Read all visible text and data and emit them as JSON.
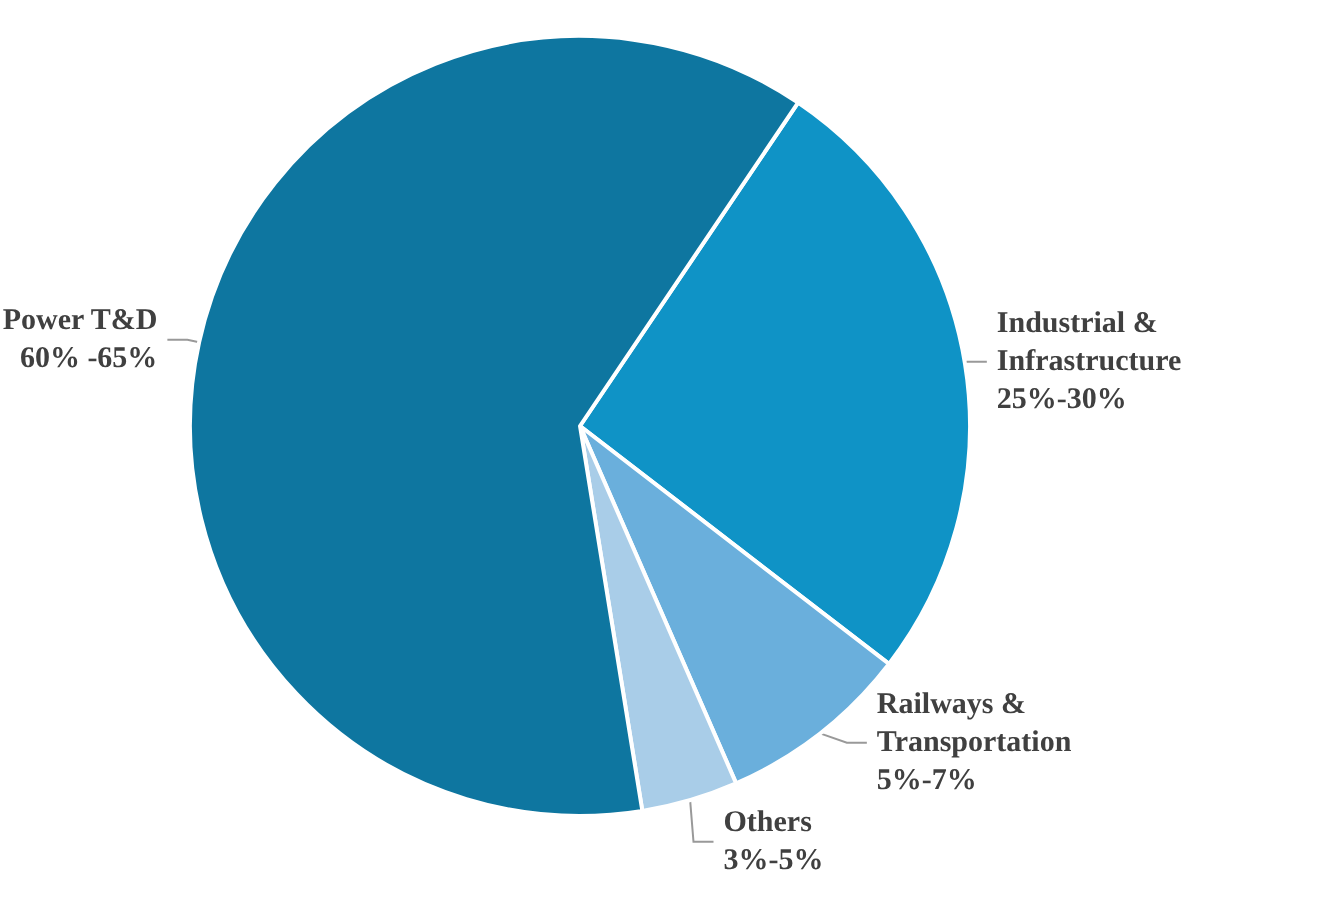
{
  "chart_data": {
    "type": "pie",
    "categories": [
      "Industrial &\nInfrastructure\n25%-30%",
      "Railways &\nTransportation\n5%-7%",
      "Others\n3%-5%",
      "Power T&D\n60% -65%"
    ],
    "values": [
      26,
      8,
      4,
      62
    ],
    "colors": [
      "#0f93c6",
      "#6aafdc",
      "#a9cde8",
      "#0e76a0"
    ],
    "legend": false
  }
}
